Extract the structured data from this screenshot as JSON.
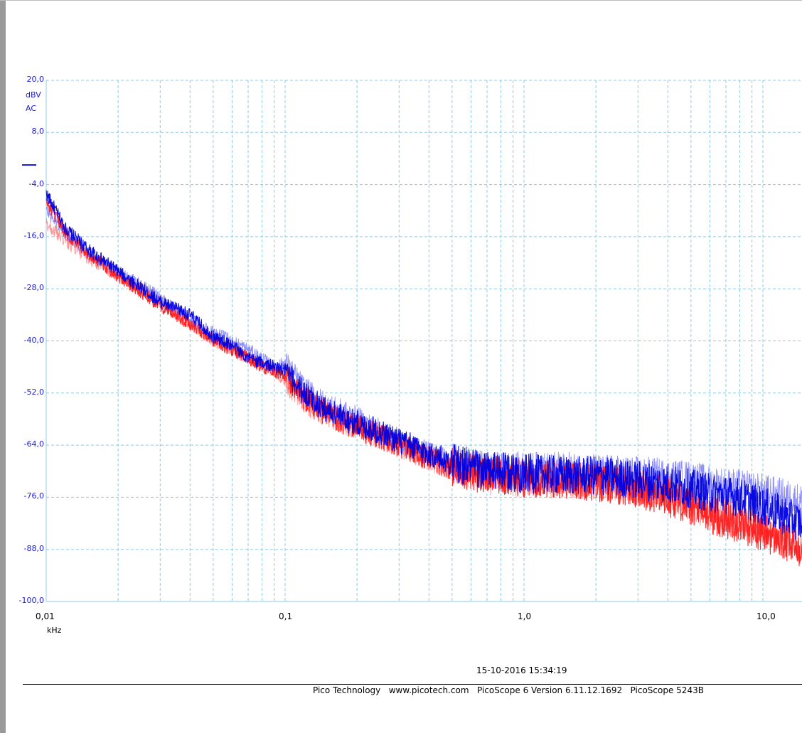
{
  "colors": {
    "grid": "#8ecae6",
    "axis_text": "#1a1ae0",
    "channel_a": "#0000e0",
    "channel_a_light": "#7a7aff",
    "channel_b": "#ff1a1a",
    "channel_b_light": "#ff8080"
  },
  "axes": {
    "y_unit": "dBV",
    "y_coupling": "AC",
    "x_unit": "kHz"
  },
  "footer": {
    "timestamp": "15-10-2016 15:34:19",
    "info": "Pico Technology   www.picotech.com   PicoScope 6 Version 6.11.12.1692   PicoScope 5243B"
  },
  "chart_data": {
    "type": "line",
    "x_scale": "log",
    "xlim": [
      0.01,
      16
    ],
    "ylim": [
      -100,
      20
    ],
    "grid": true,
    "x_ticks": [
      0.01,
      0.1,
      1.0,
      10.0
    ],
    "x_tick_labels": [
      "0,01",
      "0,1",
      "1,0",
      "10,0"
    ],
    "y_ticks": [
      20,
      8,
      -4,
      -16,
      -28,
      -40,
      -52,
      -64,
      -76,
      -88,
      -100
    ],
    "y_tick_labels": [
      "20,0",
      "8,0",
      "-4,0",
      "-16,0",
      "-28,0",
      "-40,0",
      "-52,0",
      "-64,0",
      "-76,0",
      "-88,0",
      "-100,0"
    ],
    "x": [
      0.01,
      0.012,
      0.015,
      0.02,
      0.03,
      0.04,
      0.05,
      0.06,
      0.07,
      0.08,
      0.09,
      0.1,
      0.12,
      0.15,
      0.2,
      0.25,
      0.3,
      0.4,
      0.5,
      0.7,
      1.0,
      1.5,
      2.0,
      3.0,
      4.0,
      5.0,
      6.0,
      8.0,
      10.0,
      12.0,
      16.0
    ],
    "series": [
      {
        "color": "#0000e0",
        "values": [
          -6,
          -14,
          -19,
          -24,
          -31,
          -34,
          -39,
          -41,
          -44,
          -45,
          -46,
          -47,
          -52,
          -56,
          -59,
          -61,
          -63,
          -66,
          -68,
          -70,
          -70.5,
          -71,
          -71,
          -72,
          -73,
          -74,
          -75,
          -76,
          -78,
          -80,
          -83
        ]
      },
      {
        "color": "#7a7aff",
        "values": [
          -10,
          -15,
          -20,
          -24,
          -30,
          -35,
          -38,
          -40,
          -42,
          -44,
          -46,
          -45,
          -51,
          -55,
          -58,
          -61,
          -63,
          -66,
          -68,
          -70,
          -70,
          -70,
          -70.5,
          -71,
          -71.5,
          -72,
          -73,
          -74,
          -75,
          -76,
          -78
        ]
      },
      {
        "color": "#ff1a1a",
        "values": [
          -8,
          -15,
          -20,
          -25,
          -32,
          -36,
          -40,
          -42,
          -44,
          -46,
          -47,
          -48,
          -53,
          -57,
          -60,
          -62,
          -64,
          -67,
          -69,
          -71,
          -71.5,
          -72,
          -72.5,
          -74,
          -76,
          -78,
          -80,
          -82,
          -84,
          -86,
          -89
        ]
      },
      {
        "color": "#ff8080",
        "values": [
          -13,
          -17,
          -21,
          -25,
          -31,
          -36,
          -40,
          -42,
          -44,
          -46,
          -47,
          -49,
          -54,
          -57,
          -60,
          -62,
          -64,
          -67,
          -69,
          -71,
          -71.5,
          -72,
          -72.5,
          -73.5,
          -75,
          -77,
          -79,
          -81,
          -83,
          -85,
          -88
        ]
      }
    ]
  }
}
